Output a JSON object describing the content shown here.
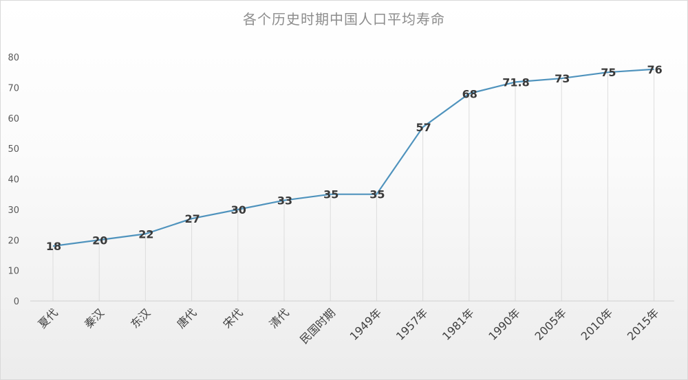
{
  "chart_data": {
    "type": "line",
    "title": "各个历史时期中国人口平均寿命",
    "categories": [
      "夏代",
      "秦汉",
      "东汉",
      "唐代",
      "宋代",
      "清代",
      "民国时期",
      "1949年",
      "1957年",
      "1981年",
      "1990年",
      "2005年",
      "2010年",
      "2015年"
    ],
    "series": [
      {
        "values": [
          18,
          20,
          22,
          27,
          30,
          33,
          35,
          35,
          57,
          68,
          71.8,
          73,
          75,
          76
        ],
        "labels": [
          "18",
          "20",
          "22",
          "27",
          "30",
          "33",
          "35",
          "35",
          "57",
          "68",
          "71.8",
          "73",
          "75",
          "76"
        ]
      }
    ],
    "ylim": [
      0,
      80
    ],
    "yticks": [
      "0",
      "10",
      "20",
      "30",
      "40",
      "50",
      "60",
      "70",
      "80"
    ],
    "xlabel": "",
    "ylabel": "",
    "line_color": "#4f93bd",
    "grid": "vertical drop lines",
    "legend": "none"
  }
}
